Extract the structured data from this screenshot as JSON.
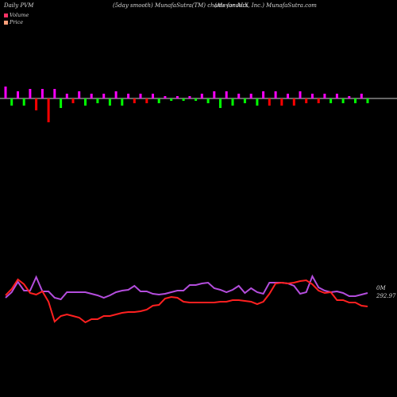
{
  "header": {
    "left": "Daily PVM",
    "middle": "(5day smooth) MunafaSutra(TM) charts for ALX",
    "right": "(Alexanders, Inc.) MunafaSutra.com"
  },
  "legend": {
    "volume": "Volume",
    "price": "Price"
  },
  "colors": {
    "background": "#000000",
    "volume_up": "#ff00ff",
    "volume_down": "#00ff00",
    "volume_big_down": "#ff0000",
    "volume_legend": "#ff3366",
    "price_legend": "#ffa07a",
    "price_line": "#ff2020",
    "volume_line": "#b44ddd",
    "baseline": "#cccccc"
  },
  "labels": {
    "volume_axis": "0M",
    "price_axis": "292.97"
  },
  "chart_data": {
    "type": "line",
    "volume_bars": {
      "values": [
        0.5,
        -0.3,
        0.3,
        -0.3,
        0.4,
        -0.5,
        0.4,
        -1.0,
        0.4,
        -0.4,
        0.2,
        -0.2,
        0.3,
        -0.3,
        0.2,
        -0.2,
        0.2,
        -0.3,
        0.3,
        -0.3,
        0.2,
        -0.2,
        0.2,
        -0.2,
        0.2,
        -0.2,
        0.1,
        -0.1,
        0.1,
        -0.1,
        0.1,
        -0.1,
        0.2,
        -0.2,
        0.3,
        -0.4,
        0.3,
        -0.3,
        0.2,
        -0.2,
        0.2,
        -0.3,
        0.3,
        -0.3,
        0.3,
        -0.3,
        0.2,
        -0.3,
        0.3,
        -0.2,
        0.2,
        -0.2,
        0.2,
        -0.2,
        0.2,
        -0.2,
        0.1,
        -0.2,
        0.2,
        -0.2
      ],
      "colors": [
        "#ff00ff",
        "#00ff00",
        "#ff00ff",
        "#00ff00",
        "#ff00ff",
        "#ff0000",
        "#ff00ff",
        "#ff0000",
        "#ff00ff",
        "#00ff00",
        "#ff00ff",
        "#ff0000",
        "#ff00ff",
        "#00ff00",
        "#ff00ff",
        "#00ff00",
        "#ff00ff",
        "#00ff00",
        "#ff00ff",
        "#00ff00",
        "#ff00ff",
        "#ff0000",
        "#ff00ff",
        "#ff0000",
        "#ff00ff",
        "#00ff00",
        "#ff00ff",
        "#00ff00",
        "#ff00ff",
        "#00ff00",
        "#ff00ff",
        "#00ff00",
        "#ff00ff",
        "#00ff00",
        "#ff00ff",
        "#00ff00",
        "#ff00ff",
        "#00ff00",
        "#ff00ff",
        "#00ff00",
        "#ff00ff",
        "#00ff00",
        "#ff00ff",
        "#ff0000",
        "#ff00ff",
        "#ff0000",
        "#ff00ff",
        "#ff0000",
        "#ff00ff",
        "#ff0000",
        "#ff00ff",
        "#ff0000",
        "#ff00ff",
        "#00ff00",
        "#ff00ff",
        "#00ff00",
        "#ff00ff",
        "#00ff00",
        "#ff00ff",
        "#00ff00"
      ]
    },
    "price_series": [
      372,
      364,
      352,
      358,
      369,
      371,
      367,
      380,
      405,
      398,
      396,
      398,
      400,
      406,
      402,
      402,
      398,
      398,
      396,
      394,
      393,
      393,
      392,
      390,
      385,
      384,
      376,
      374,
      375,
      380,
      381,
      381,
      381,
      381,
      381,
      380,
      380,
      378,
      378,
      379,
      380,
      383,
      380,
      370,
      357,
      356,
      357,
      356,
      354,
      353,
      358,
      366,
      369,
      368,
      378,
      378,
      381,
      381,
      385,
      386
    ],
    "volume_series": [
      375,
      368,
      355,
      366,
      366,
      349,
      367,
      367,
      375,
      377,
      368,
      368,
      368,
      368,
      370,
      372,
      375,
      372,
      368,
      366,
      365,
      360,
      367,
      367,
      370,
      371,
      370,
      368,
      366,
      366,
      359,
      359,
      357,
      356,
      363,
      365,
      368,
      365,
      360,
      369,
      363,
      368,
      370,
      356,
      356,
      356,
      357,
      360,
      370,
      368,
      348,
      362,
      366,
      368,
      367,
      369,
      373,
      373,
      371,
      369
    ]
  }
}
